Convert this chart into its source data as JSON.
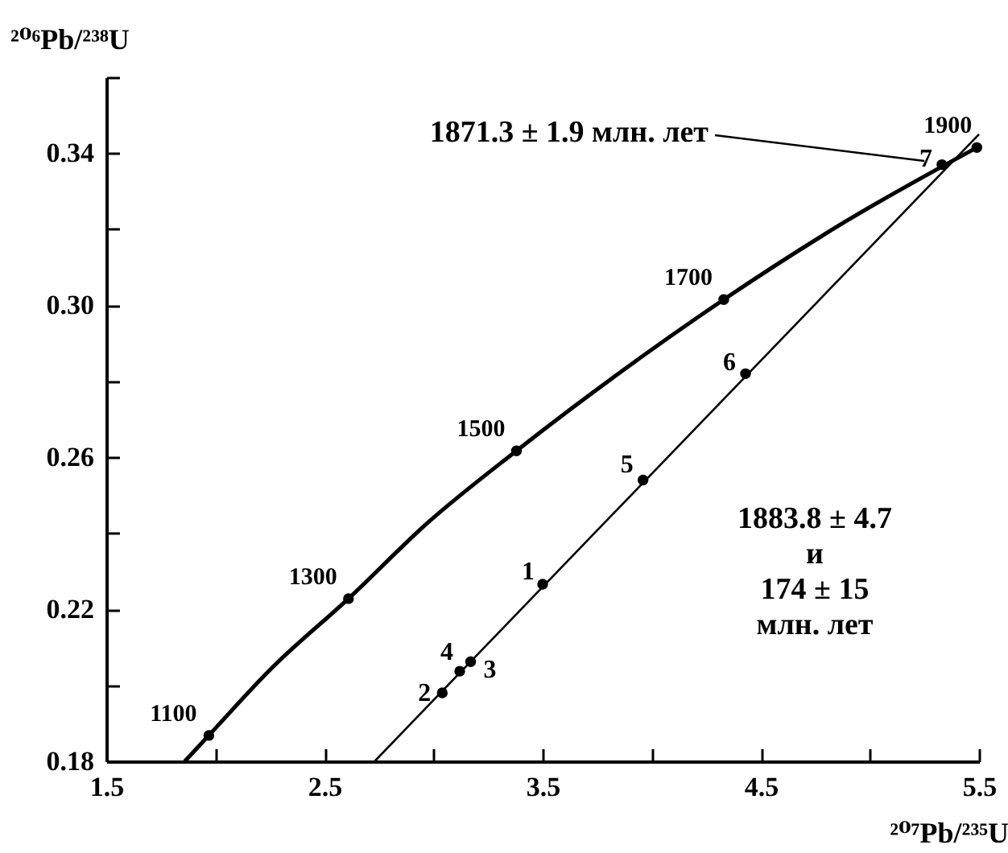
{
  "chart_data": {
    "type": "line",
    "xlabel": "²⁰⁷Pb/²³⁵U",
    "ylabel": "²⁰⁶Pb/²³⁸U",
    "xlim": [
      1.5,
      5.5
    ],
    "ylim": [
      0.18,
      0.36
    ],
    "xticks": [
      1.5,
      {
        "value": 2,
        "label": null
      },
      2.5,
      {
        "value": 3,
        "label": null
      },
      3.5,
      {
        "value": 4,
        "label": null
      },
      4.5,
      {
        "value": 5,
        "label": null
      },
      5.5
    ],
    "yticks": [
      0.18,
      {
        "value": 0.2,
        "label": null
      },
      {
        "value": 0.22,
        "label": "0.22"
      },
      {
        "value": 0.24,
        "label": null
      },
      {
        "value": 0.26,
        "label": "0.26"
      },
      {
        "value": 0.28,
        "label": null
      },
      {
        "value": 0.3,
        "label": "0.30"
      },
      {
        "value": 0.32,
        "label": null
      },
      {
        "value": 0.34,
        "label": "0.34"
      },
      {
        "value": 0.36,
        "label": null
      }
    ],
    "grid": false,
    "annotations": [
      "1871.3 ± 1.9 млн. лет",
      "1883.8 ± 4.7\nи\n174 ± 15\nмлн. лет",
      {
        "text": "1100",
        "x": 1.97,
        "y": 0.1868
      },
      {
        "text": "1300",
        "x": 2.61,
        "y": 0.2228
      },
      {
        "text": "1500",
        "x": 3.38,
        "y": 0.2617
      },
      {
        "text": "1700",
        "x": 4.33,
        "y": 0.3015
      },
      {
        "text": "1900",
        "x": 5.49,
        "y": 0.3415
      },
      {
        "text": "1",
        "x": 3.5,
        "y": 0.2266
      },
      {
        "text": "2",
        "x": 3.04,
        "y": 0.198
      },
      {
        "text": "3",
        "x": 3.17,
        "y": 0.2062
      },
      {
        "text": "4",
        "x": 3.12,
        "y": 0.2037
      },
      {
        "text": "5",
        "x": 3.96,
        "y": 0.254
      },
      {
        "text": "6",
        "x": 4.43,
        "y": 0.282
      },
      {
        "text": "7",
        "x": 5.33,
        "y": 0.337
      }
    ],
    "series": [
      {
        "color": "#000000",
        "x": [
          1.86,
          1.97,
          2.26,
          2.61,
          2.97,
          3.38,
          3.84,
          4.33,
          4.89,
          5.49
        ],
        "values": [
          0.18,
          0.1868,
          0.2046,
          0.2228,
          0.2426,
          0.2617,
          0.2817,
          0.3015,
          0.3221,
          0.3415
        ]
      },
      {
        "type": "scatter",
        "color": "#000000",
        "x": [
          1.97,
          2.61,
          3.38,
          4.33,
          5.49
        ],
        "values": [
          0.1868,
          0.2228,
          0.2617,
          0.3015,
          0.3415
        ]
      },
      {
        "color": "#000000",
        "x": [
          2.73,
          5.5
        ],
        "values": [
          0.18,
          0.345
        ]
      },
      {
        "type": "scatter",
        "color": "#000000",
        "x": [
          3.5,
          3.04,
          3.17,
          3.12,
          3.96,
          4.43,
          5.33
        ],
        "values": [
          0.2266,
          0.198,
          0.2062,
          0.2037,
          0.254,
          0.282,
          0.337
        ]
      }
    ]
  }
}
